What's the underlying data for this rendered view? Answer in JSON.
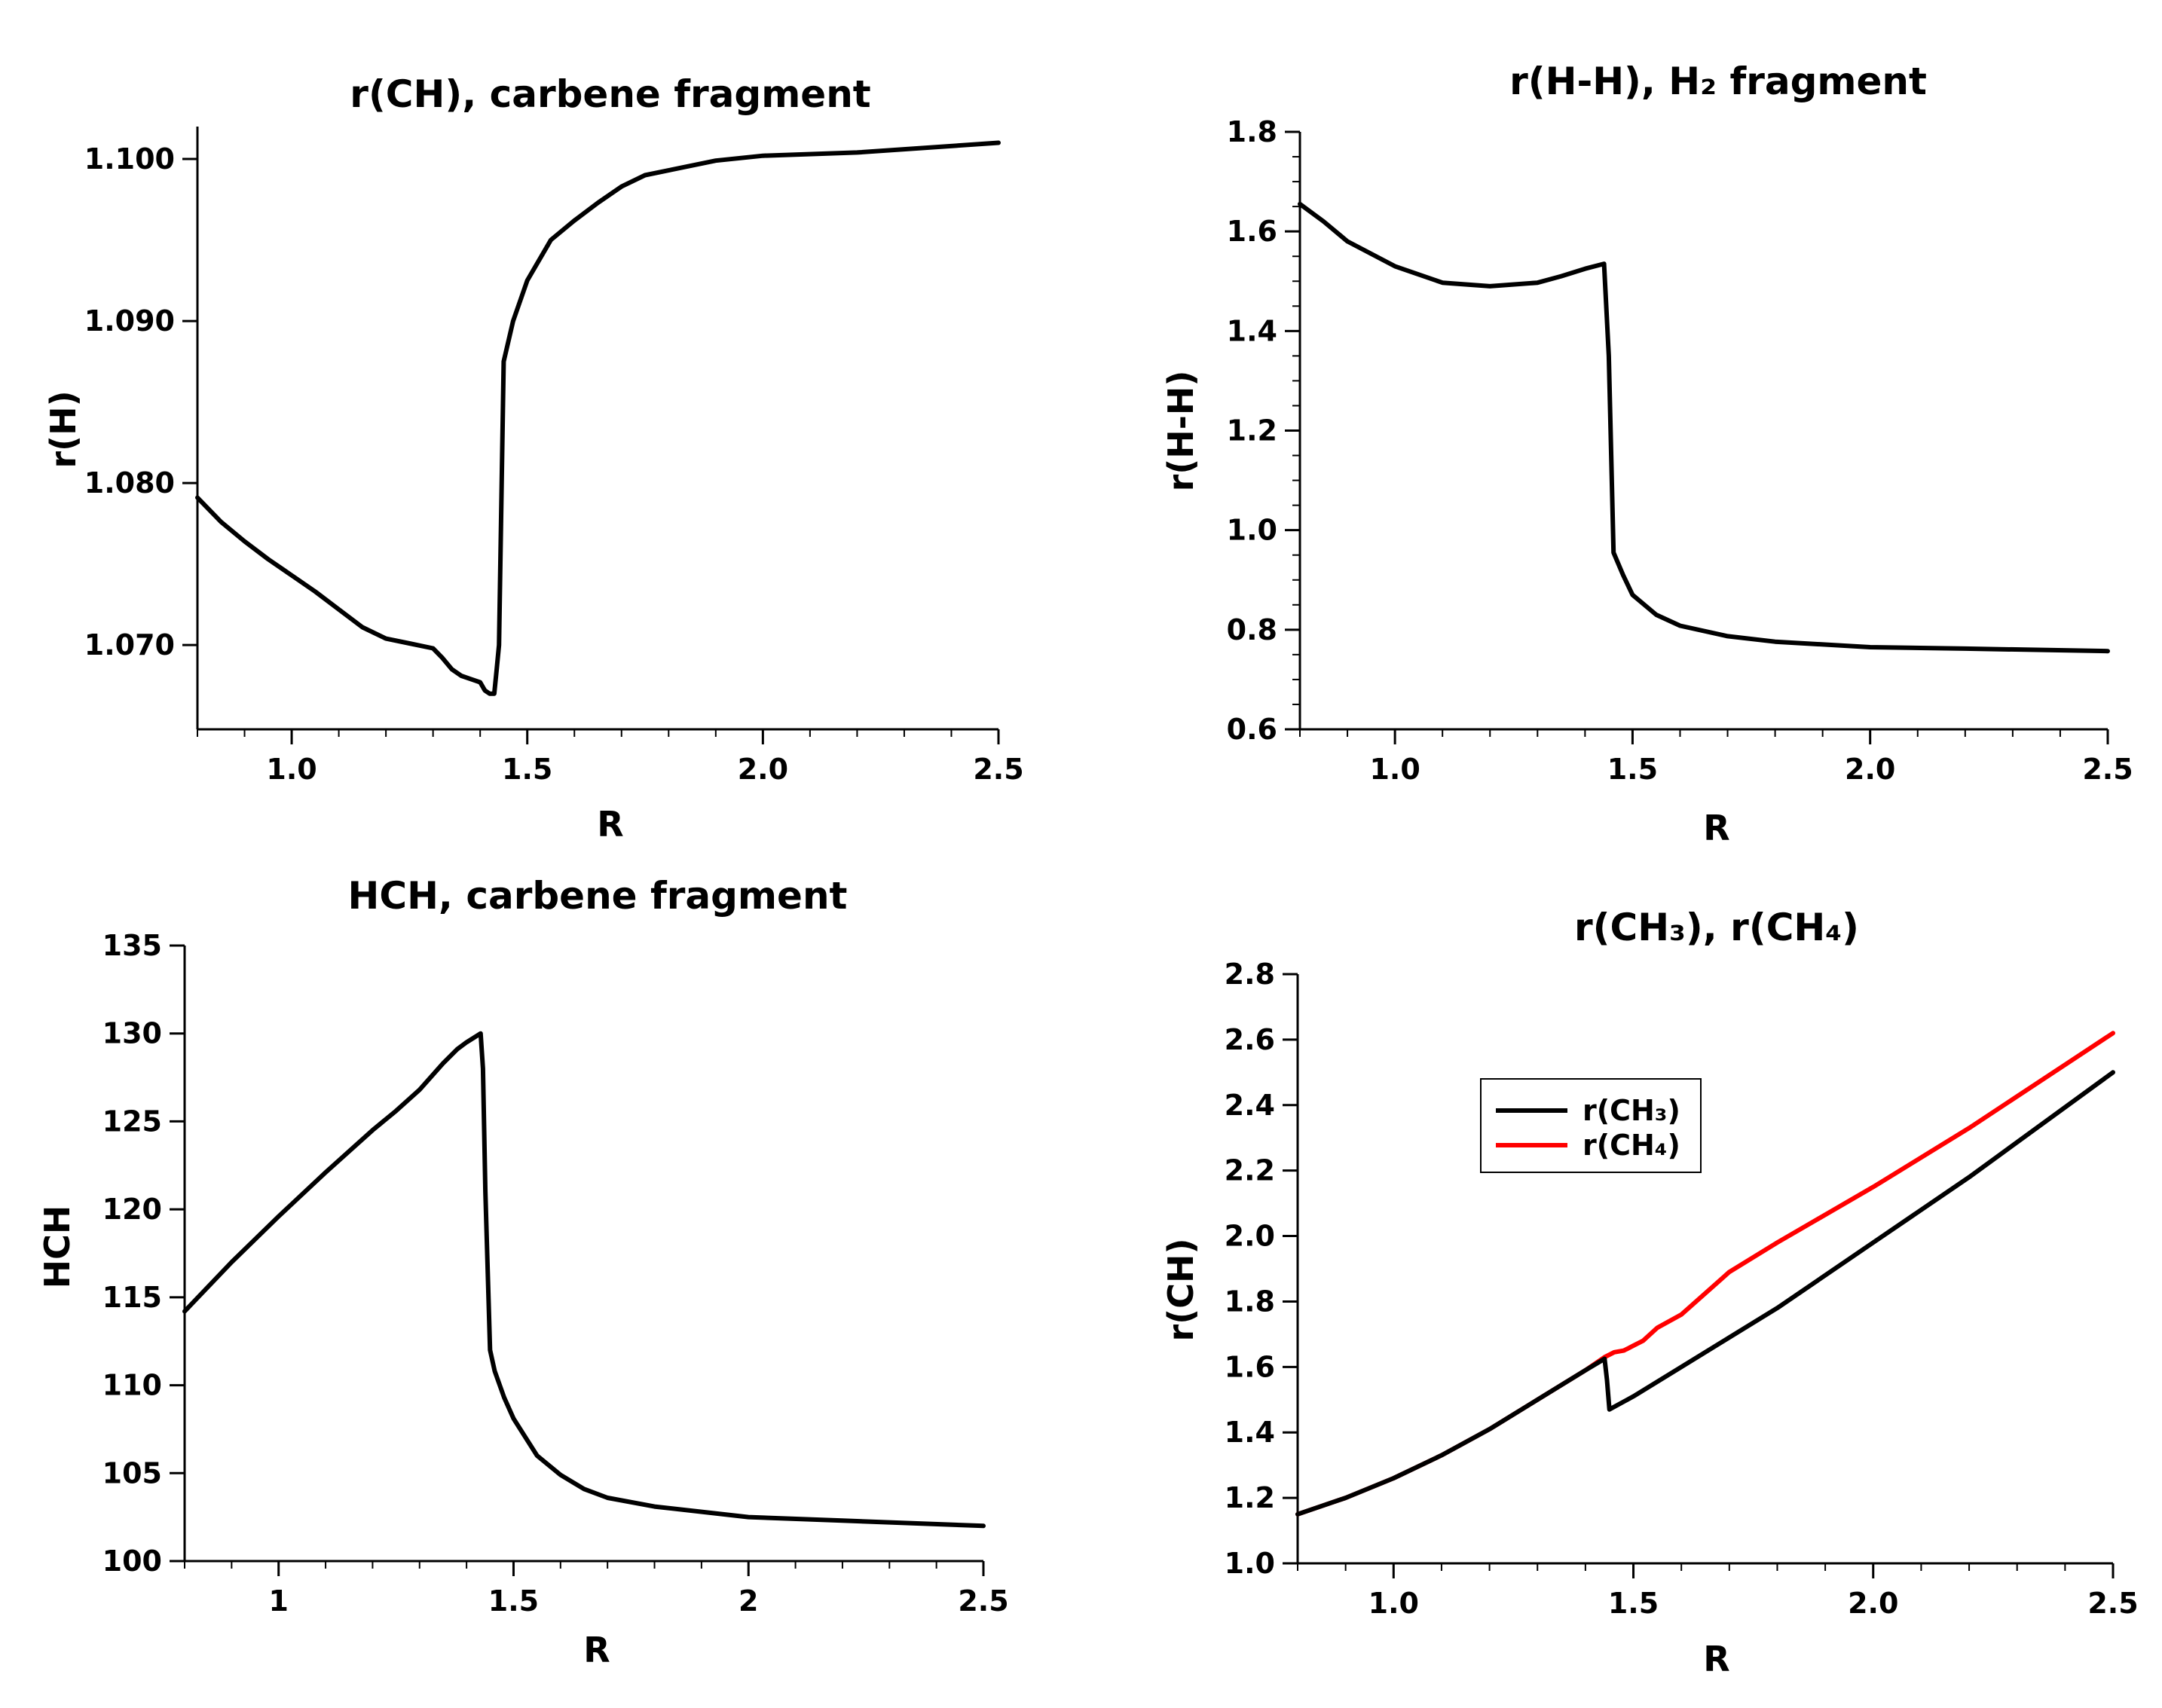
{
  "chart_data": [
    {
      "type": "line",
      "title": "r(CH), carbene fragment",
      "xlabel": "R",
      "ylabel": "r(H)",
      "xlim": [
        0.8,
        2.5
      ],
      "ylim": [
        1.0648,
        1.102
      ],
      "xticks": [
        1.0,
        1.5,
        2.0,
        2.5
      ],
      "xtick_labels": [
        "1.0",
        "1.5",
        "2.0",
        "2.5"
      ],
      "yticks": [
        1.07,
        1.08,
        1.09,
        1.1
      ],
      "ytick_labels": [
        "1.070",
        "1.080",
        "1.090",
        "1.100"
      ],
      "xminor": 0.1,
      "yminor": null,
      "grid": false,
      "series": [
        {
          "color": "#000000",
          "x": [
            0.8,
            0.85,
            0.9,
            0.95,
            1.0,
            1.05,
            1.1,
            1.15,
            1.2,
            1.25,
            1.3,
            1.32,
            1.34,
            1.36,
            1.38,
            1.4,
            1.41,
            1.42,
            1.425,
            1.43,
            1.435,
            1.44,
            1.45,
            1.47,
            1.5,
            1.55,
            1.6,
            1.65,
            1.7,
            1.75,
            1.8,
            1.9,
            2.0,
            2.2,
            2.5
          ],
          "y": [
            1.0791,
            1.0776,
            1.0764,
            1.0753,
            1.0743,
            1.0733,
            1.0722,
            1.0711,
            1.0704,
            1.0701,
            1.0698,
            1.0692,
            1.0685,
            1.0681,
            1.0679,
            1.0677,
            1.0672,
            1.067,
            1.067,
            1.067,
            1.0685,
            1.07,
            1.0875,
            1.09,
            1.0925,
            1.095,
            1.0962,
            1.0973,
            1.0983,
            1.099,
            1.0993,
            1.0999,
            1.1002,
            1.1004,
            1.101
          ]
        }
      ]
    },
    {
      "type": "line",
      "title": "r(H-H), H₂ fragment",
      "xlabel": "R",
      "ylabel": "r(H-H)",
      "xlim": [
        0.8,
        2.5
      ],
      "ylim": [
        0.6,
        1.8
      ],
      "xticks": [
        1.0,
        1.5,
        2.0,
        2.5
      ],
      "xtick_labels": [
        "1.0",
        "1.5",
        "2.0",
        "2.5"
      ],
      "yticks": [
        0.6,
        0.8,
        1.0,
        1.2,
        1.4,
        1.6,
        1.8
      ],
      "ytick_labels": [
        "0.6",
        "0.8",
        "1.0",
        "1.2",
        "1.4",
        "1.6",
        "1.8"
      ],
      "xminor": 0.1,
      "yminor": 0.05,
      "grid": false,
      "series": [
        {
          "color": "#000000",
          "x": [
            0.8,
            0.85,
            0.9,
            1.0,
            1.1,
            1.2,
            1.3,
            1.35,
            1.4,
            1.44,
            1.45,
            1.46,
            1.48,
            1.5,
            1.55,
            1.6,
            1.7,
            1.8,
            2.0,
            2.2,
            2.5
          ],
          "y": [
            1.655,
            1.62,
            1.58,
            1.53,
            1.497,
            1.49,
            1.497,
            1.51,
            1.525,
            1.535,
            1.35,
            0.955,
            0.91,
            0.87,
            0.83,
            0.808,
            0.787,
            0.776,
            0.765,
            0.762,
            0.757
          ]
        }
      ]
    },
    {
      "type": "line",
      "title": "HCH, carbene fragment",
      "xlabel": "R",
      "ylabel": "HCH",
      "xlim": [
        0.8,
        2.5
      ],
      "ylim": [
        100,
        135
      ],
      "xticks": [
        1.0,
        1.5,
        2.0,
        2.5
      ],
      "xtick_labels": [
        "1",
        "1.5",
        "2",
        "2.5"
      ],
      "yticks": [
        100,
        105,
        110,
        115,
        120,
        125,
        130,
        135
      ],
      "ytick_labels": [
        "100",
        "105",
        "110",
        "115",
        "120",
        "125",
        "130",
        "135"
      ],
      "xminor": 0.1,
      "yminor": null,
      "grid": false,
      "series": [
        {
          "color": "#000000",
          "x": [
            0.8,
            0.9,
            1.0,
            1.1,
            1.2,
            1.25,
            1.3,
            1.35,
            1.38,
            1.4,
            1.43,
            1.435,
            1.44,
            1.45,
            1.46,
            1.48,
            1.5,
            1.55,
            1.6,
            1.65,
            1.7,
            1.8,
            2.0,
            2.2,
            2.5
          ],
          "y": [
            114.2,
            117.0,
            119.6,
            122.1,
            124.5,
            125.6,
            126.8,
            128.3,
            129.1,
            129.5,
            130.0,
            128.0,
            121.0,
            112.0,
            110.8,
            109.3,
            108.1,
            106.0,
            104.9,
            104.1,
            103.6,
            103.1,
            102.5,
            102.3,
            102.0
          ]
        }
      ]
    },
    {
      "type": "line",
      "title": "r(CH₃), r(CH₄)",
      "xlabel": "R",
      "ylabel": "r(CH)",
      "xlim": [
        0.8,
        2.5
      ],
      "ylim": [
        1.0,
        2.8
      ],
      "xticks": [
        1.0,
        1.5,
        2.0,
        2.5
      ],
      "xtick_labels": [
        "1.0",
        "1.5",
        "2.0",
        "2.5"
      ],
      "yticks": [
        1.0,
        1.2,
        1.4,
        1.6,
        1.8,
        2.0,
        2.2,
        2.4,
        2.6,
        2.8
      ],
      "ytick_labels": [
        "1.0",
        "1.2",
        "1.4",
        "1.6",
        "1.8",
        "2.0",
        "2.2",
        "2.4",
        "2.6",
        "2.8"
      ],
      "xminor": 0.1,
      "yminor": null,
      "grid": false,
      "legend": {
        "placement": "center-left",
        "entries": [
          {
            "label": "r(CH₃)",
            "color": "#000000"
          },
          {
            "label": "r(CH₄)",
            "color": "#ff0000"
          }
        ]
      },
      "series": [
        {
          "name": "r(CH₄)",
          "color": "#ff0000",
          "x": [
            0.8,
            0.9,
            1.0,
            1.1,
            1.2,
            1.3,
            1.4,
            1.44,
            1.46,
            1.48,
            1.5,
            1.52,
            1.55,
            1.6,
            1.7,
            1.8,
            2.0,
            2.2,
            2.5
          ],
          "y": [
            1.15,
            1.2,
            1.26,
            1.33,
            1.41,
            1.5,
            1.59,
            1.63,
            1.645,
            1.65,
            1.665,
            1.68,
            1.72,
            1.76,
            1.89,
            1.98,
            2.15,
            2.33,
            2.62
          ]
        },
        {
          "name": "r(CH₃)",
          "color": "#000000",
          "x": [
            0.8,
            0.9,
            1.0,
            1.1,
            1.2,
            1.3,
            1.4,
            1.44,
            1.445,
            1.45,
            1.5,
            1.6,
            1.7,
            1.8,
            2.0,
            2.2,
            2.5
          ],
          "y": [
            1.15,
            1.2,
            1.26,
            1.33,
            1.41,
            1.5,
            1.59,
            1.625,
            1.56,
            1.47,
            1.51,
            1.6,
            1.69,
            1.78,
            1.98,
            2.18,
            2.5
          ]
        }
      ]
    }
  ]
}
